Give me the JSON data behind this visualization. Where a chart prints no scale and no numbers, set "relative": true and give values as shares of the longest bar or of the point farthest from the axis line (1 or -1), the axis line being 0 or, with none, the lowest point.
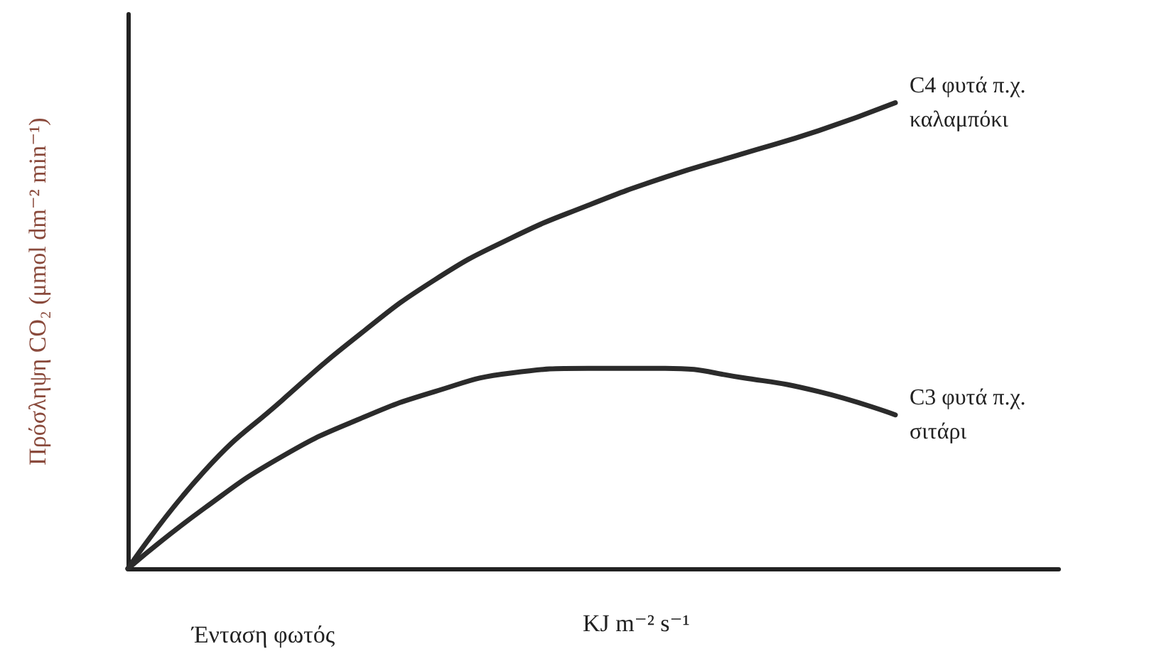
{
  "chart_data": {
    "type": "line",
    "relative": true,
    "xlabel": "Ένταση φωτός",
    "ylabel": "Πρόσληψη CO₂ (μmol dm⁻² min⁻¹)",
    "annotations": [
      "KJ m⁻² s⁻¹"
    ],
    "categories": [
      null,
      null,
      null,
      null,
      null,
      null,
      null,
      null,
      null,
      null,
      null
    ],
    "series": [
      {
        "name": "C4 φυτά π.χ. καλαμπόκι",
        "color": "#2b2b2b",
        "values": [
          0,
          0.21,
          0.36,
          0.5,
          0.62,
          0.71,
          0.78,
          0.84,
          0.89,
          0.94,
          1
        ]
      },
      {
        "name": "C3 φυτά π.χ. σιτάρι",
        "color": "#2b2b2b",
        "values": [
          0,
          0.13,
          0.24,
          0.32,
          0.38,
          0.42,
          0.43,
          0.43,
          0.41,
          0.38,
          0.33
        ]
      }
    ],
    "grid": false,
    "legend": false,
    "marker": "none",
    "line_style": "solid"
  }
}
